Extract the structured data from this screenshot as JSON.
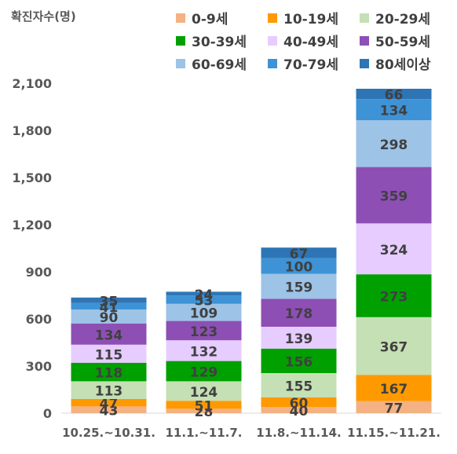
{
  "chart_data": {
    "type": "bar",
    "stacked": true,
    "ylabel": "확진자수(명)",
    "categories": [
      "10.25.~10.31.",
      "11.1.~11.7.",
      "11.8.~11.14.",
      "11.15.~11.21."
    ],
    "y_ticks": [
      "0",
      "300",
      "600",
      "900",
      "1,200",
      "1,500",
      "1,800",
      "2,100"
    ],
    "ylim": [
      0,
      2100
    ],
    "grid": false,
    "legend_position": "top",
    "series": [
      {
        "name": "0-9세",
        "color": "#F4B183",
        "values": [
          43,
          28,
          40,
          77
        ]
      },
      {
        "name": "10-19세",
        "color": "#FF9900",
        "values": [
          47,
          51,
          60,
          167
        ]
      },
      {
        "name": "20-29세",
        "color": "#C5E0B4",
        "values": [
          113,
          124,
          155,
          367
        ]
      },
      {
        "name": "30-39세",
        "color": "#00A000",
        "values": [
          118,
          129,
          156,
          273
        ]
      },
      {
        "name": "40-49세",
        "color": "#E6CCFF",
        "values": [
          115,
          132,
          139,
          324
        ]
      },
      {
        "name": "50-59세",
        "color": "#8E4FB5",
        "values": [
          134,
          123,
          178,
          359
        ]
      },
      {
        "name": "60-69세",
        "color": "#9DC3E6",
        "values": [
          90,
          109,
          159,
          298
        ]
      },
      {
        "name": "70-79세",
        "color": "#3D93D6",
        "values": [
          41,
          53,
          100,
          134
        ]
      },
      {
        "name": "80세이상",
        "color": "#2E75B6",
        "values": [
          35,
          24,
          67,
          66
        ]
      }
    ]
  }
}
